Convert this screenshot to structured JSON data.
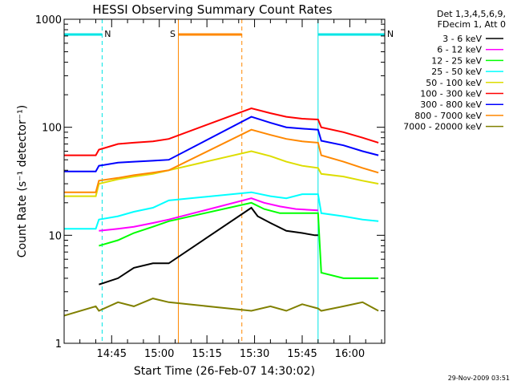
{
  "chart_data": {
    "type": "line",
    "title": "HESSI Observing Summary Count Rates",
    "xlabel": "Start Time (26-Feb-07 14:30:02)",
    "ylabel": "Count Rate (s⁻¹ detector⁻¹)",
    "yscale": "log",
    "ylim": [
      1,
      1000
    ],
    "y_ticks": [
      {
        "value": 1,
        "label": "1"
      },
      {
        "value": 10,
        "label": "10"
      },
      {
        "value": 100,
        "label": "100"
      },
      {
        "value": 1000,
        "label": "1000"
      }
    ],
    "xlim": [
      "14:30:02",
      "16:11"
    ],
    "x_ticks": [
      {
        "time": "14:45",
        "label": "14:45"
      },
      {
        "time": "15:00",
        "label": "15:00"
      },
      {
        "time": "15:15",
        "label": "15:15"
      },
      {
        "time": "15:30",
        "label": "15:30"
      },
      {
        "time": "15:45",
        "label": "15:45"
      },
      {
        "time": "16:00",
        "label": "16:00"
      }
    ],
    "legend_title": [
      "Det 1,3,4,5,6,9,",
      "FDecim 1, Att 0"
    ],
    "legend_position": "right",
    "flags": [
      {
        "name": "N",
        "color": "#00e5e5",
        "start": "14:30:02",
        "end": "14:42"
      },
      {
        "name": "S",
        "color": "#ff8800",
        "start": "15:06",
        "end": "15:26"
      },
      {
        "name": "N",
        "color": "#00e5e5",
        "start": "15:50",
        "end": "16:11"
      }
    ],
    "night_boundaries": [
      "14:42",
      "15:50",
      "16:09"
    ],
    "saa_boundaries": [
      "15:04",
      "15:26"
    ],
    "series": [
      {
        "name": "3 - 6 keV",
        "color": "#000000",
        "points": [
          [
            "14:30:02",
            null
          ],
          [
            "14:39",
            null
          ],
          [
            "14:41",
            3.5
          ],
          [
            "14:47",
            4
          ],
          [
            "14:52",
            5
          ],
          [
            "14:58",
            5.5
          ],
          [
            "15:03",
            5.5
          ],
          [
            "15:29",
            18
          ],
          [
            "15:31",
            15
          ],
          [
            "15:35",
            13
          ],
          [
            "15:40",
            11
          ],
          [
            "15:45",
            10.5
          ],
          [
            "15:49",
            10
          ],
          [
            "15:50",
            10
          ],
          [
            "15:51",
            null
          ]
        ]
      },
      {
        "name": "6 - 12 keV",
        "color": "#ff00ff",
        "points": [
          [
            "14:41",
            11
          ],
          [
            "14:47",
            11.5
          ],
          [
            "14:52",
            12
          ],
          [
            "14:58",
            13
          ],
          [
            "15:03",
            14
          ],
          [
            "15:29",
            22
          ],
          [
            "15:33",
            20
          ],
          [
            "15:38",
            18.5
          ],
          [
            "15:43",
            17.5
          ],
          [
            "15:50",
            17
          ],
          [
            "15:51",
            null
          ]
        ]
      },
      {
        "name": "12 - 25 keV",
        "color": "#00ff00",
        "points": [
          [
            "14:41",
            8
          ],
          [
            "14:47",
            9
          ],
          [
            "14:52",
            10.5
          ],
          [
            "14:58",
            12
          ],
          [
            "15:03",
            13.5
          ],
          [
            "15:29",
            20
          ],
          [
            "15:33",
            17.5
          ],
          [
            "15:38",
            16
          ],
          [
            "15:43",
            16
          ],
          [
            "15:50",
            16
          ],
          [
            "15:51",
            4.5
          ],
          [
            "15:58",
            4
          ],
          [
            "16:00",
            4
          ],
          [
            "16:09",
            4
          ]
        ]
      },
      {
        "name": "25 - 50 keV",
        "color": "#00ffff",
        "points": [
          [
            "14:30:02",
            11.5
          ],
          [
            "14:40",
            11.5
          ],
          [
            "14:41",
            14
          ],
          [
            "14:47",
            15
          ],
          [
            "14:52",
            16.5
          ],
          [
            "14:58",
            18
          ],
          [
            "15:03",
            21
          ],
          [
            "15:29",
            25
          ],
          [
            "15:35",
            23
          ],
          [
            "15:40",
            22
          ],
          [
            "15:45",
            24
          ],
          [
            "15:50",
            24
          ],
          [
            "15:51",
            16
          ],
          [
            "15:58",
            15
          ],
          [
            "16:04",
            14
          ],
          [
            "16:09",
            13.5
          ]
        ]
      },
      {
        "name": "50 - 100 keV",
        "color": "#dddd00",
        "points": [
          [
            "14:30:02",
            23
          ],
          [
            "14:40",
            23
          ],
          [
            "14:41",
            30
          ],
          [
            "14:47",
            33
          ],
          [
            "14:52",
            35
          ],
          [
            "14:58",
            37
          ],
          [
            "15:03",
            40
          ],
          [
            "15:29",
            60
          ],
          [
            "15:35",
            54
          ],
          [
            "15:40",
            48
          ],
          [
            "15:45",
            44
          ],
          [
            "15:50",
            42
          ],
          [
            "15:51",
            37
          ],
          [
            "15:58",
            35
          ],
          [
            "16:04",
            32
          ],
          [
            "16:09",
            30
          ]
        ]
      },
      {
        "name": "100 - 300 keV",
        "color": "#ff0000",
        "points": [
          [
            "14:30:02",
            55
          ],
          [
            "14:40",
            55
          ],
          [
            "14:41",
            62
          ],
          [
            "14:47",
            70
          ],
          [
            "14:52",
            72
          ],
          [
            "14:58",
            74
          ],
          [
            "15:03",
            78
          ],
          [
            "15:29",
            150
          ],
          [
            "15:35",
            135
          ],
          [
            "15:40",
            125
          ],
          [
            "15:45",
            120
          ],
          [
            "15:50",
            118
          ],
          [
            "15:51",
            100
          ],
          [
            "15:58",
            90
          ],
          [
            "16:04",
            80
          ],
          [
            "16:09",
            72
          ]
        ]
      },
      {
        "name": "300 - 800 keV",
        "color": "#0000ff",
        "points": [
          [
            "14:30:02",
            39
          ],
          [
            "14:40",
            39
          ],
          [
            "14:41",
            44
          ],
          [
            "14:47",
            47
          ],
          [
            "14:52",
            48
          ],
          [
            "14:58",
            49
          ],
          [
            "15:03",
            50
          ],
          [
            "15:29",
            125
          ],
          [
            "15:35",
            110
          ],
          [
            "15:40",
            100
          ],
          [
            "15:45",
            97
          ],
          [
            "15:50",
            95
          ],
          [
            "15:51",
            75
          ],
          [
            "15:58",
            68
          ],
          [
            "16:04",
            60
          ],
          [
            "16:09",
            55
          ]
        ]
      },
      {
        "name": "800 - 7000 keV",
        "color": "#ff8800",
        "points": [
          [
            "14:30:02",
            25
          ],
          [
            "14:40",
            25
          ],
          [
            "14:41",
            32
          ],
          [
            "14:47",
            34
          ],
          [
            "14:52",
            36
          ],
          [
            "14:58",
            38
          ],
          [
            "15:03",
            40
          ],
          [
            "15:29",
            95
          ],
          [
            "15:35",
            85
          ],
          [
            "15:40",
            78
          ],
          [
            "15:45",
            74
          ],
          [
            "15:50",
            72
          ],
          [
            "15:51",
            55
          ],
          [
            "15:58",
            48
          ],
          [
            "16:04",
            42
          ],
          [
            "16:09",
            38
          ]
        ]
      },
      {
        "name": "7000 - 20000 keV",
        "color": "#808000",
        "points": [
          [
            "14:30:02",
            1.8
          ],
          [
            "14:40",
            2.2
          ],
          [
            "14:41",
            2.0
          ],
          [
            "14:47",
            2.4
          ],
          [
            "14:52",
            2.2
          ],
          [
            "14:58",
            2.6
          ],
          [
            "15:03",
            2.4
          ],
          [
            "15:29",
            2.0
          ],
          [
            "15:35",
            2.2
          ],
          [
            "15:40",
            2.0
          ],
          [
            "15:45",
            2.3
          ],
          [
            "15:50",
            2.1
          ],
          [
            "15:51",
            2.0
          ],
          [
            "15:58",
            2.2
          ],
          [
            "16:04",
            2.4
          ],
          [
            "16:09",
            2.0
          ]
        ]
      }
    ]
  },
  "footer_timestamp": "29-Nov-2009 03:51"
}
